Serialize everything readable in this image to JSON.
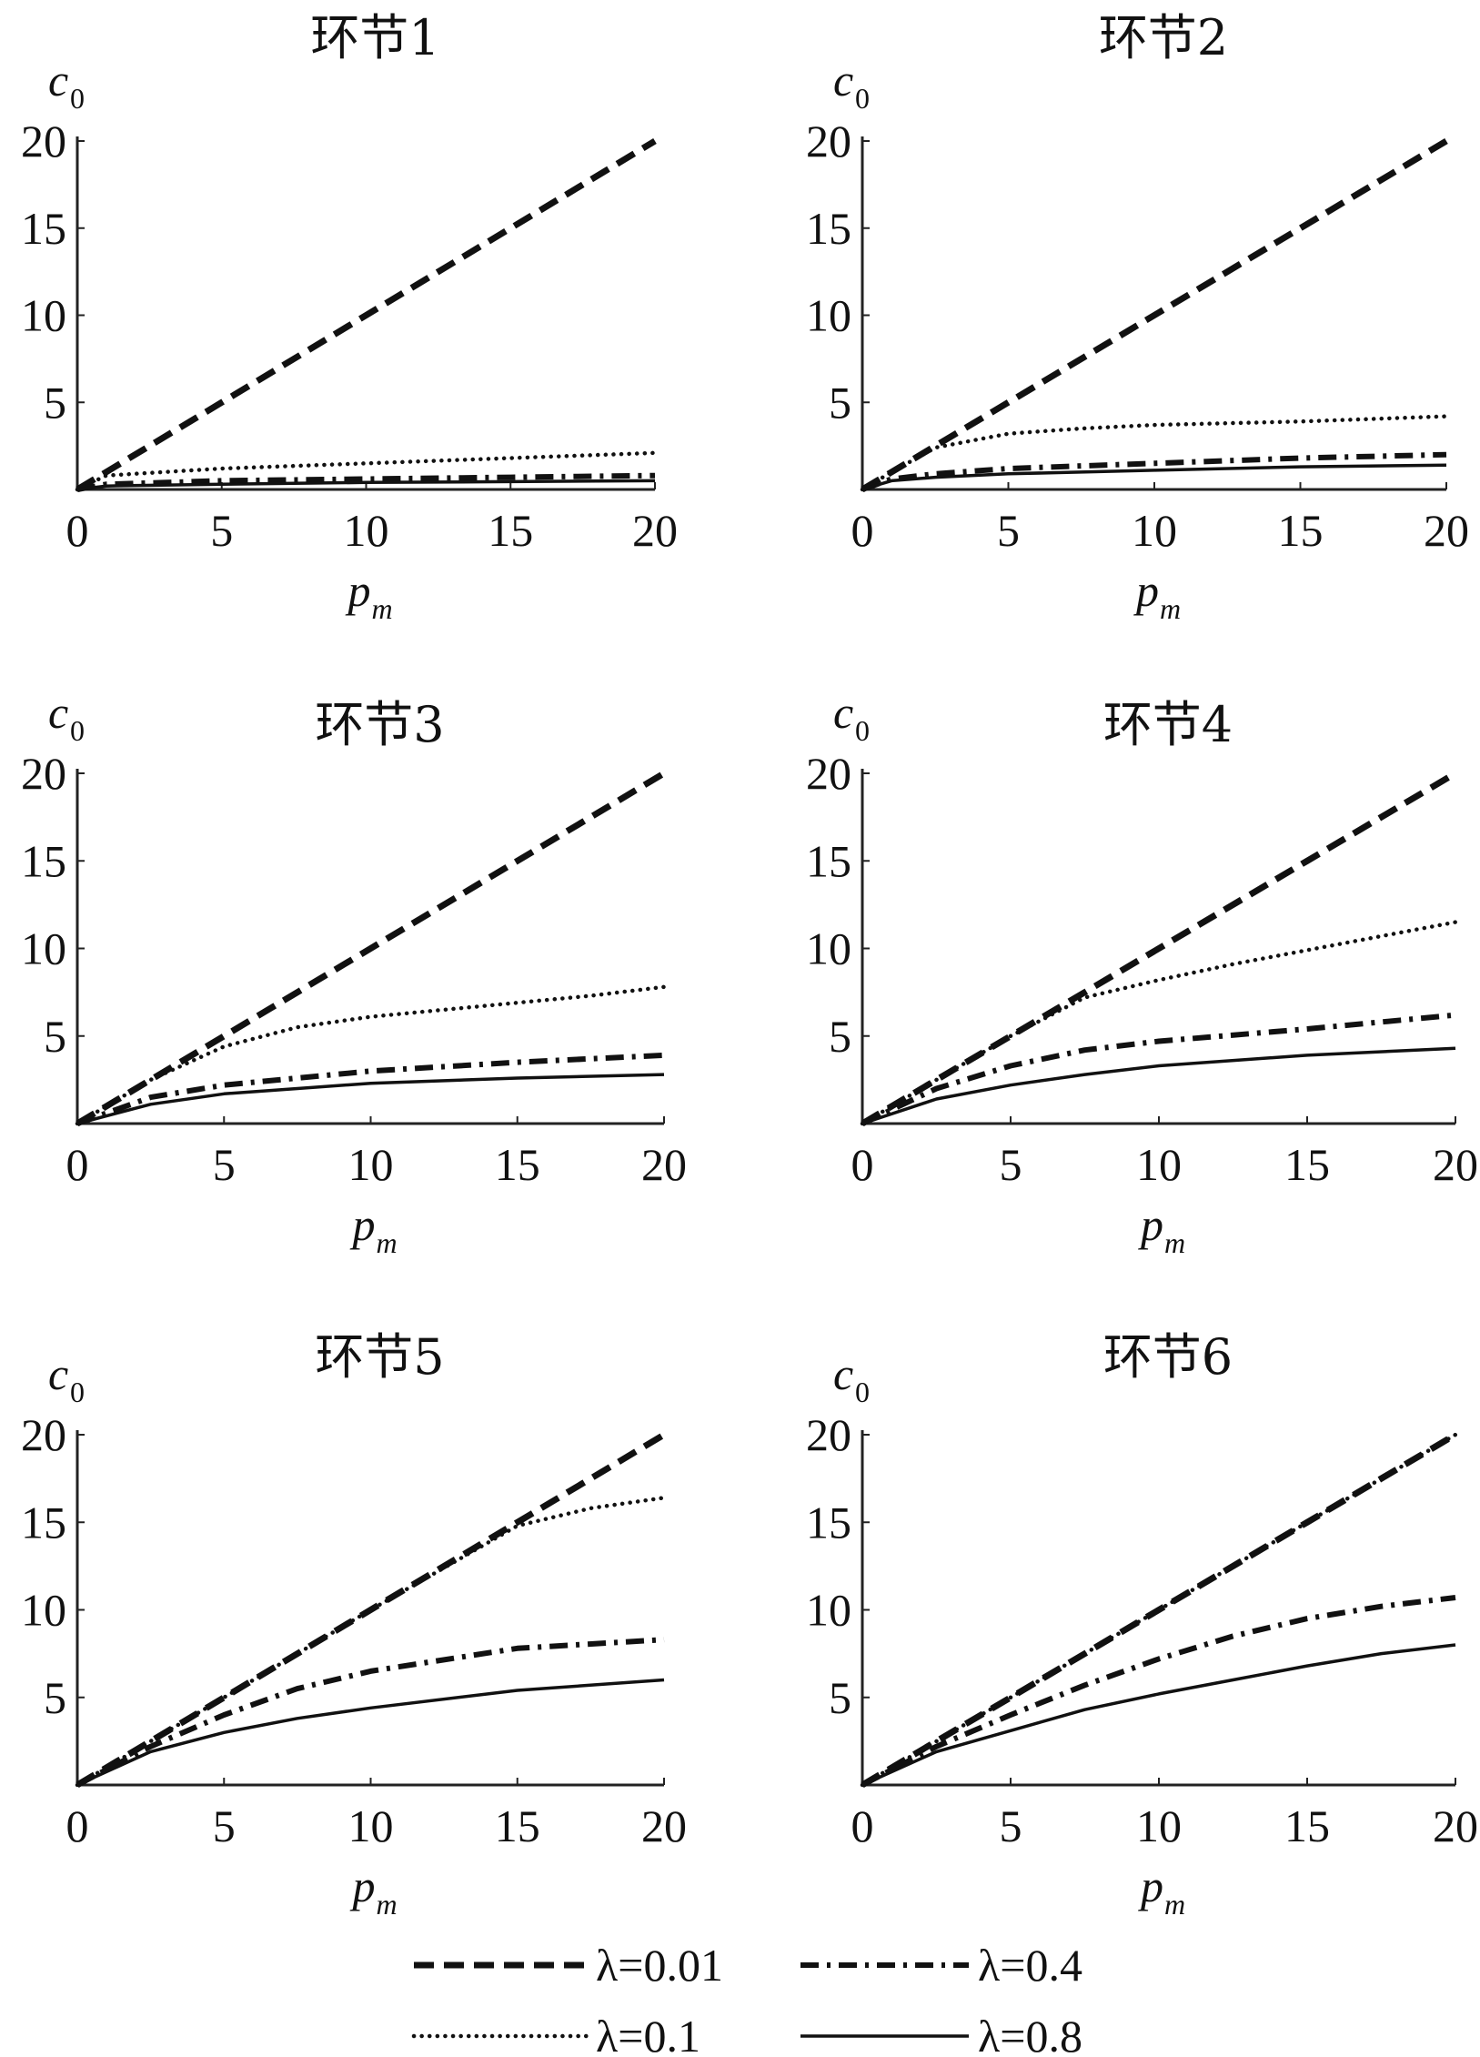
{
  "chart_data": [
    {
      "type": "line",
      "title": "环节1",
      "xlabel": "p",
      "xlabel_sub": "m",
      "ylabel": "c",
      "ylabel_sub": "0",
      "xlim": [
        0,
        20
      ],
      "ylim": [
        0,
        20
      ],
      "xticks": [
        0,
        5,
        10,
        15,
        20
      ],
      "yticks": [
        5,
        10,
        15,
        20
      ],
      "grid": false,
      "series": [
        {
          "name": "λ=0.01",
          "style": "dashed",
          "x": [
            0,
            5,
            10,
            15,
            20
          ],
          "y": [
            0,
            5,
            10,
            15,
            20
          ]
        },
        {
          "name": "λ=0.1",
          "style": "dotted",
          "x": [
            0,
            1,
            5,
            10,
            15,
            20
          ],
          "y": [
            0,
            0.8,
            1.2,
            1.5,
            1.8,
            2.1
          ]
        },
        {
          "name": "λ=0.4",
          "style": "dashdot",
          "x": [
            0,
            1,
            5,
            10,
            15,
            20
          ],
          "y": [
            0,
            0.3,
            0.5,
            0.6,
            0.7,
            0.8
          ]
        },
        {
          "name": "λ=0.8",
          "style": "solid",
          "x": [
            0,
            1,
            5,
            10,
            15,
            20
          ],
          "y": [
            0,
            0.2,
            0.3,
            0.4,
            0.45,
            0.5
          ]
        }
      ]
    },
    {
      "type": "line",
      "title": "环节2",
      "xlabel": "p",
      "xlabel_sub": "m",
      "ylabel": "c",
      "ylabel_sub": "0",
      "xlim": [
        0,
        20
      ],
      "ylim": [
        0,
        20
      ],
      "xticks": [
        0,
        5,
        10,
        15,
        20
      ],
      "yticks": [
        5,
        10,
        15,
        20
      ],
      "grid": false,
      "series": [
        {
          "name": "λ=0.01",
          "style": "dashed",
          "x": [
            0,
            5,
            10,
            15,
            20
          ],
          "y": [
            0,
            5,
            10,
            15,
            20
          ]
        },
        {
          "name": "λ=0.1",
          "style": "dotted",
          "x": [
            0,
            1,
            2.5,
            5,
            7.5,
            10,
            15,
            20
          ],
          "y": [
            0,
            1,
            2.4,
            3.2,
            3.5,
            3.7,
            3.9,
            4.2
          ]
        },
        {
          "name": "λ=0.4",
          "style": "dashdot",
          "x": [
            0,
            1,
            2.5,
            5,
            10,
            15,
            20
          ],
          "y": [
            0,
            0.6,
            0.9,
            1.2,
            1.5,
            1.8,
            2.0
          ]
        },
        {
          "name": "λ=0.8",
          "style": "solid",
          "x": [
            0,
            1,
            2.5,
            5,
            10,
            15,
            20
          ],
          "y": [
            0,
            0.5,
            0.7,
            0.9,
            1.1,
            1.3,
            1.4
          ]
        }
      ]
    },
    {
      "type": "line",
      "title": "环节3",
      "xlabel": "p",
      "xlabel_sub": "m",
      "ylabel": "c",
      "ylabel_sub": "0",
      "xlim": [
        0,
        20
      ],
      "ylim": [
        0,
        20
      ],
      "xticks": [
        0,
        5,
        10,
        15,
        20
      ],
      "yticks": [
        5,
        10,
        15,
        20
      ],
      "grid": false,
      "series": [
        {
          "name": "λ=0.01",
          "style": "dashed",
          "x": [
            0,
            5,
            10,
            15,
            20
          ],
          "y": [
            0,
            5,
            10,
            15,
            20
          ]
        },
        {
          "name": "λ=0.1",
          "style": "dotted",
          "x": [
            0,
            2.5,
            5,
            7.5,
            10,
            12.5,
            15,
            17.5,
            20
          ],
          "y": [
            0,
            2.5,
            4.4,
            5.5,
            6.1,
            6.5,
            6.9,
            7.3,
            7.8
          ]
        },
        {
          "name": "λ=0.4",
          "style": "dashdot",
          "x": [
            0,
            2.5,
            5,
            7.5,
            10,
            15,
            20
          ],
          "y": [
            0,
            1.5,
            2.2,
            2.6,
            3.0,
            3.5,
            3.9
          ]
        },
        {
          "name": "λ=0.8",
          "style": "solid",
          "x": [
            0,
            2.5,
            5,
            7.5,
            10,
            15,
            20
          ],
          "y": [
            0,
            1.1,
            1.7,
            2.0,
            2.3,
            2.6,
            2.8
          ]
        }
      ]
    },
    {
      "type": "line",
      "title": "环节4",
      "xlabel": "p",
      "xlabel_sub": "m",
      "ylabel": "c",
      "ylabel_sub": "0",
      "xlim": [
        0,
        20
      ],
      "ylim": [
        0,
        20
      ],
      "xticks": [
        0,
        5,
        10,
        15,
        20
      ],
      "yticks": [
        5,
        10,
        15,
        20
      ],
      "grid": false,
      "series": [
        {
          "name": "λ=0.01",
          "style": "dashed",
          "x": [
            0,
            5,
            10,
            15,
            20
          ],
          "y": [
            0,
            5,
            10,
            15,
            20
          ]
        },
        {
          "name": "λ=0.1",
          "style": "dotted",
          "x": [
            0,
            2.5,
            5,
            7.5,
            10,
            12.5,
            15,
            17.5,
            20
          ],
          "y": [
            0,
            2.5,
            5.0,
            7.2,
            8.2,
            9.1,
            9.9,
            10.7,
            11.5
          ]
        },
        {
          "name": "λ=0.4",
          "style": "dashdot",
          "x": [
            0,
            2.5,
            5,
            7.5,
            10,
            15,
            20
          ],
          "y": [
            0,
            2.0,
            3.3,
            4.2,
            4.7,
            5.4,
            6.2
          ]
        },
        {
          "name": "λ=0.8",
          "style": "solid",
          "x": [
            0,
            2.5,
            5,
            7.5,
            10,
            15,
            20
          ],
          "y": [
            0,
            1.4,
            2.2,
            2.8,
            3.3,
            3.9,
            4.3
          ]
        }
      ]
    },
    {
      "type": "line",
      "title": "环节5",
      "xlabel": "p",
      "xlabel_sub": "m",
      "ylabel": "c",
      "ylabel_sub": "0",
      "xlim": [
        0,
        20
      ],
      "ylim": [
        0,
        20
      ],
      "xticks": [
        0,
        5,
        10,
        15,
        20
      ],
      "yticks": [
        5,
        10,
        15,
        20
      ],
      "grid": false,
      "series": [
        {
          "name": "λ=0.01",
          "style": "dashed",
          "x": [
            0,
            5,
            10,
            15,
            20
          ],
          "y": [
            0,
            5,
            10,
            15,
            20
          ]
        },
        {
          "name": "λ=0.1",
          "style": "dotted",
          "x": [
            0,
            5,
            10,
            15,
            17.5,
            20
          ],
          "y": [
            0,
            5,
            10,
            14.8,
            15.8,
            16.4
          ]
        },
        {
          "name": "λ=0.4",
          "style": "dashdot",
          "x": [
            0,
            2.5,
            5,
            7.5,
            10,
            15,
            20
          ],
          "y": [
            0,
            2.2,
            4.0,
            5.5,
            6.5,
            7.8,
            8.3
          ]
        },
        {
          "name": "λ=0.8",
          "style": "solid",
          "x": [
            0,
            2.5,
            5,
            7.5,
            10,
            15,
            20
          ],
          "y": [
            0,
            1.9,
            3.0,
            3.8,
            4.4,
            5.4,
            6.0
          ]
        }
      ]
    },
    {
      "type": "line",
      "title": "环节6",
      "xlabel": "p",
      "xlabel_sub": "m",
      "ylabel": "c",
      "ylabel_sub": "0",
      "xlim": [
        0,
        20
      ],
      "ylim": [
        0,
        20
      ],
      "xticks": [
        0,
        5,
        10,
        15,
        20
      ],
      "yticks": [
        5,
        10,
        15,
        20
      ],
      "grid": false,
      "series": [
        {
          "name": "λ=0.01",
          "style": "dashed",
          "x": [
            0,
            5,
            10,
            15,
            20
          ],
          "y": [
            0,
            5,
            10,
            15,
            20
          ]
        },
        {
          "name": "λ=0.1",
          "style": "dotted",
          "x": [
            0,
            5,
            10,
            15,
            20
          ],
          "y": [
            0,
            5,
            10,
            15,
            20
          ]
        },
        {
          "name": "λ=0.4",
          "style": "dashdot",
          "x": [
            0,
            2.5,
            5,
            7.5,
            10,
            12.5,
            15,
            17.5,
            20
          ],
          "y": [
            0,
            2.2,
            4.0,
            5.7,
            7.2,
            8.5,
            9.5,
            10.2,
            10.7
          ]
        },
        {
          "name": "λ=0.8",
          "style": "solid",
          "x": [
            0,
            2.5,
            5,
            7.5,
            10,
            12.5,
            15,
            17.5,
            20
          ],
          "y": [
            0,
            1.9,
            3.1,
            4.3,
            5.2,
            6.0,
            6.8,
            7.5,
            8.0
          ]
        }
      ]
    }
  ],
  "legend": {
    "placement": "bottom",
    "items": [
      {
        "label": "λ=0.01",
        "style": "dashed"
      },
      {
        "label": "λ=0.4",
        "style": "dashdot"
      },
      {
        "label": "λ=0.1",
        "style": "dotted"
      },
      {
        "label": "λ=0.8",
        "style": "solid"
      }
    ]
  }
}
